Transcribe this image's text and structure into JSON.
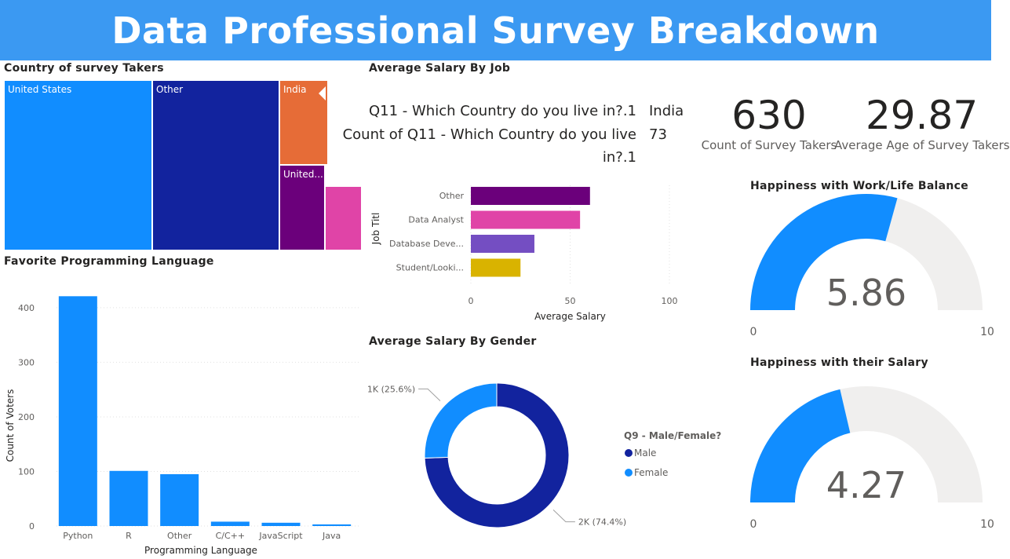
{
  "title": "Data Professional Survey Breakdown",
  "colors": {
    "header": "#3b99f2",
    "blue": "#118dff",
    "navy": "#12239e",
    "orange": "#e66c37",
    "purple": "#6b007b",
    "pink": "#e044a7",
    "violet": "#744ec2",
    "gold": "#d9b300",
    "gauge_bg": "#f0efee"
  },
  "treemap": {
    "title": "Country of survey Takers",
    "cells": [
      {
        "label": "United States",
        "color": "#118dff"
      },
      {
        "label": "Other",
        "color": "#12239e"
      },
      {
        "label": "India",
        "color": "#e66c37"
      },
      {
        "label": "United...",
        "color": "#6b007b"
      },
      {
        "label": "",
        "color": "#e044a7"
      }
    ]
  },
  "tooltip": {
    "row1_label": "Q11 - Which Country do you live in?.1",
    "row1_value": "India",
    "row2_label_a": "Count of Q11 - Which Country do you live",
    "row2_label_b": "in?.1",
    "row2_value": "73"
  },
  "kpis": [
    {
      "value": "630",
      "label": "Count of Survey Takers"
    },
    {
      "value": "29.87",
      "label": "Average Age of Survey Takers"
    }
  ],
  "gauges": [
    {
      "title": "Happiness with Work/Life Balance",
      "value": 5.86,
      "value_label": "5.86",
      "min": 0,
      "max": 10,
      "min_label": "0",
      "max_label": "10"
    },
    {
      "title": "Happiness with their Salary",
      "value": 4.27,
      "value_label": "4.27",
      "min": 0,
      "max": 10,
      "min_label": "0",
      "max_label": "10"
    }
  ],
  "chart_data": [
    {
      "id": "salary-by-job",
      "type": "bar",
      "orientation": "horizontal",
      "title": "Average Salary By Job",
      "ylabel": "Job Titl",
      "xlabel": "Average Salary",
      "categories": [
        "Other",
        "Data Analyst",
        "Database Deve...",
        "Student/Looki..."
      ],
      "values": [
        60,
        55,
        32,
        25
      ],
      "colors": [
        "#6b007b",
        "#e044a7",
        "#744ec2",
        "#d9b300"
      ],
      "xlim": [
        0,
        100
      ],
      "xticks": [
        0,
        50,
        100
      ],
      "grid": true
    },
    {
      "id": "language",
      "type": "bar",
      "title": "Favorite Programming Language",
      "xlabel": "Programming Language",
      "ylabel": "Count of Voters",
      "categories": [
        "Python",
        "R",
        "Other",
        "C/C++",
        "JavaScript",
        "Java"
      ],
      "values": [
        421,
        101,
        95,
        8,
        6,
        3
      ],
      "ylim": [
        0,
        420
      ],
      "yticks": [
        0,
        100,
        200,
        300,
        400
      ],
      "grid": true
    },
    {
      "id": "gender",
      "type": "pie",
      "donut": true,
      "title": "Average Salary By Gender",
      "legend_title": "Q9 - Male/Female?",
      "legend_position": "right",
      "series": [
        {
          "name": "Male",
          "value": 74.4,
          "label": "2K (74.4%)",
          "color": "#12239e"
        },
        {
          "name": "Female",
          "value": 25.6,
          "label": "1K (25.6%)",
          "color": "#118dff"
        }
      ]
    }
  ]
}
